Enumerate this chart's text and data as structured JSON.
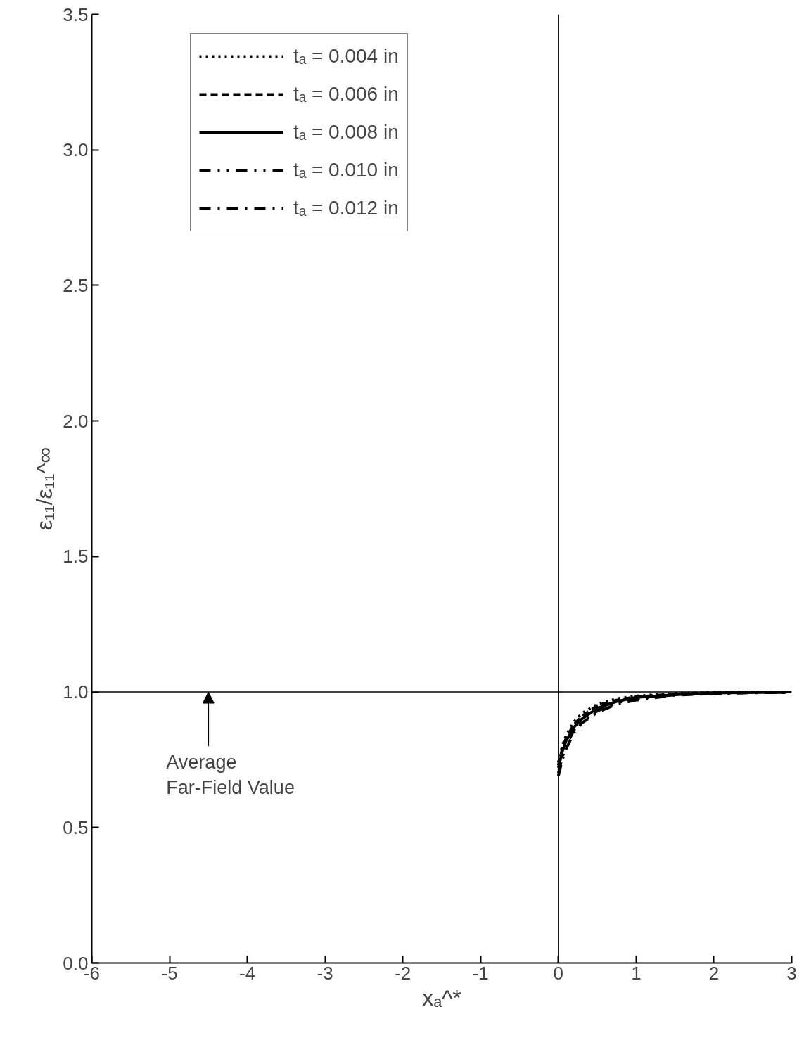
{
  "chart_data": {
    "type": "line",
    "xlabel": "xₐ^*",
    "ylabel": "ε₁₁/ε₁₁^∞",
    "x": [
      0,
      0.05,
      0.1,
      0.2,
      0.3,
      0.5,
      0.75,
      1,
      1.5,
      2,
      2.5,
      3
    ],
    "series": [
      {
        "name": "tₐ = 0.004 in",
        "color": "#000000",
        "line_style": "dotted",
        "values": [
          0.74,
          0.8,
          0.84,
          0.89,
          0.92,
          0.955,
          0.975,
          0.985,
          0.995,
          0.998,
          1.0,
          1.0
        ]
      },
      {
        "name": "tₐ = 0.006 in",
        "color": "#000000",
        "line_style": "dashed",
        "values": [
          0.73,
          0.79,
          0.83,
          0.88,
          0.91,
          0.95,
          0.97,
          0.982,
          0.993,
          0.997,
          0.999,
          1.0
        ]
      },
      {
        "name": "tₐ = 0.008 in",
        "color": "#000000",
        "line_style": "solid",
        "values": [
          0.72,
          0.78,
          0.82,
          0.87,
          0.9,
          0.94,
          0.965,
          0.98,
          0.99,
          0.996,
          0.998,
          1.0
        ]
      },
      {
        "name": "tₐ = 0.010 in",
        "color": "#000000",
        "line_style": "dashdotdot",
        "values": [
          0.7,
          0.76,
          0.8,
          0.86,
          0.89,
          0.93,
          0.96,
          0.975,
          0.99,
          0.995,
          0.998,
          0.998
        ]
      },
      {
        "name": "tₐ = 0.012 in",
        "color": "#000000",
        "line_style": "dashdot",
        "values": [
          0.69,
          0.75,
          0.79,
          0.85,
          0.885,
          0.925,
          0.955,
          0.97,
          0.988,
          0.994,
          0.997,
          0.998
        ]
      }
    ],
    "xlim": [
      -6,
      3
    ],
    "ylim": [
      0,
      3.5
    ],
    "xticks": [
      -6,
      -5,
      -4,
      -3,
      -2,
      -1,
      0,
      1,
      2,
      3
    ],
    "yticks": [
      {
        "value": 0,
        "label": "0.0"
      },
      {
        "value": 0.5,
        "label": "0.5"
      },
      {
        "value": 1,
        "label": "1.0"
      },
      {
        "value": 1.5,
        "label": "1.5"
      },
      {
        "value": 2,
        "label": "2.0"
      },
      {
        "value": 2.5,
        "label": "2.5"
      },
      {
        "value": 3,
        "label": "3.0"
      },
      {
        "value": 3.5,
        "label": "3.5"
      }
    ],
    "ref_lines": [
      {
        "axis": "x",
        "value": 0
      },
      {
        "axis": "y",
        "value": 1
      }
    ],
    "annotations": [
      {
        "text": "Average\nFar-Field Value",
        "x": -4.5,
        "y": 1.0
      }
    ],
    "grid": false,
    "legend": "top left"
  }
}
